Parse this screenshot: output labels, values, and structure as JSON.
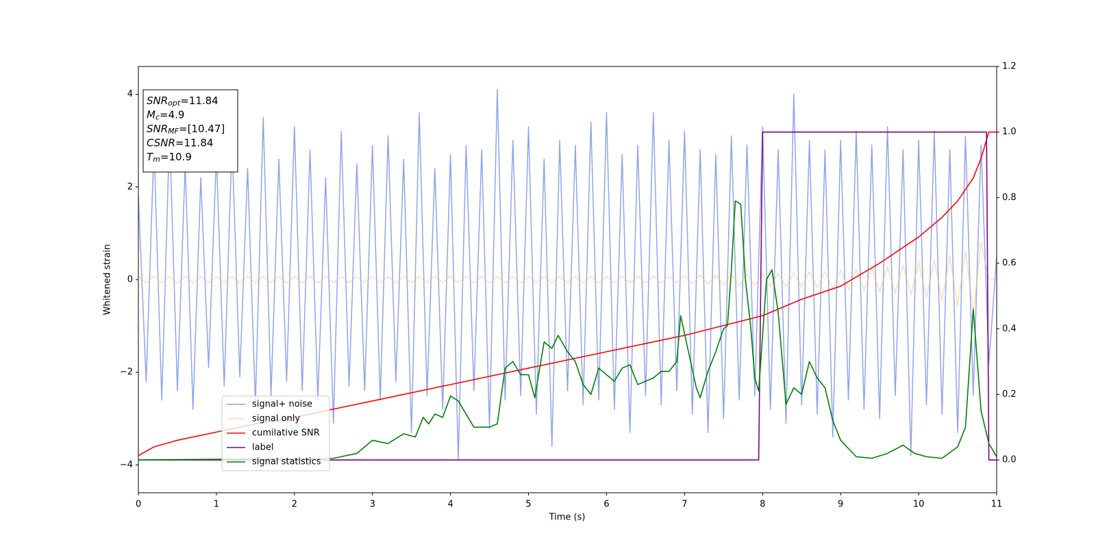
{
  "chart_data": {
    "type": "line",
    "xlabel": "Time (s)",
    "ylabel": "Whitened strain",
    "xlim": [
      0,
      11
    ],
    "xticks": [
      0,
      1,
      2,
      3,
      4,
      5,
      6,
      7,
      8,
      9,
      10,
      11
    ],
    "ylim": [
      -4.6,
      4.6
    ],
    "yticks": [
      {
        "value": -4,
        "label": "−4"
      },
      {
        "value": -2,
        "label": "−2"
      },
      0,
      2,
      4
    ],
    "y2lim": [
      -0.1,
      1.2
    ],
    "y2ticks": [
      {
        "value": 0,
        "label": "0.0"
      },
      0.2,
      0.4,
      0.6,
      0.8,
      {
        "value": 1,
        "label": "1.0"
      },
      1.2
    ],
    "annotation": [
      {
        "main": "SNR",
        "sub": "opt",
        "rest": "=11.84"
      },
      {
        "main": "M",
        "sub": "c",
        "rest": "=4.9"
      },
      {
        "main": "SNR",
        "sub": "MF",
        "rest": "=[10.47]"
      },
      {
        "main": "CSNR",
        "rest": "=11.84"
      },
      {
        "main": "T",
        "sub": "m",
        "rest": "=10.9"
      }
    ],
    "series": [
      {
        "name": "signal+ noise",
        "color": "#7b94e8",
        "x": [
          0,
          0.1,
          0.2,
          0.3,
          0.4,
          0.5,
          0.6,
          0.7,
          0.8,
          0.9,
          1,
          1.1,
          1.2,
          1.3,
          1.4,
          1.5,
          1.6,
          1.7,
          1.8,
          1.9,
          2,
          2.1,
          2.2,
          2.3,
          2.4,
          2.5,
          2.6,
          2.7,
          2.8,
          2.9,
          3,
          3.1,
          3.2,
          3.3,
          3.4,
          3.5,
          3.6,
          3.7,
          3.8,
          3.9,
          4,
          4.1,
          4.2,
          4.3,
          4.4,
          4.5,
          4.6,
          4.7,
          4.8,
          4.9,
          5,
          5.1,
          5.2,
          5.3,
          5.4,
          5.5,
          5.6,
          5.7,
          5.8,
          5.9,
          6,
          6.1,
          6.2,
          6.3,
          6.4,
          6.5,
          6.6,
          6.7,
          6.8,
          6.9,
          7,
          7.1,
          7.2,
          7.3,
          7.4,
          7.5,
          7.6,
          7.7,
          7.8,
          7.9,
          8,
          8.1,
          8.2,
          8.3,
          8.4,
          8.5,
          8.6,
          8.7,
          8.8,
          8.9,
          9,
          9.1,
          9.2,
          9.3,
          9.4,
          9.5,
          9.6,
          9.7,
          9.8,
          9.9,
          10,
          10.1,
          10.2,
          10.3,
          10.4,
          10.5,
          10.6,
          10.7,
          10.8,
          10.9,
          11
        ],
        "values": [
          1.8,
          -2.2,
          2.9,
          -2.6,
          3.2,
          -2.4,
          2.5,
          -2.8,
          2.2,
          -1.9,
          2.7,
          -2.3,
          3.0,
          -2.1,
          2.4,
          -2.7,
          3.5,
          -2.5,
          2.6,
          -2.2,
          3.3,
          -2.4,
          2.8,
          -2.6,
          2.2,
          -3.1,
          3.2,
          -2.3,
          2.5,
          -2.4,
          2.9,
          -2.6,
          3.1,
          -2.2,
          2.6,
          -3.3,
          3.6,
          -2.5,
          2.4,
          -2.8,
          2.7,
          -3.9,
          2.9,
          -2.4,
          2.8,
          -3.2,
          4.1,
          -2.6,
          3.0,
          -2.5,
          3.3,
          -2.9,
          2.6,
          -3.6,
          3.0,
          -2.4,
          2.9,
          -2.7,
          3.4,
          -2.6,
          3.6,
          -2.8,
          2.7,
          -3.3,
          2.9,
          -2.5,
          3.6,
          -2.7,
          3.0,
          -2.4,
          3.2,
          -2.9,
          2.8,
          -3.3,
          2.7,
          -3.0,
          3.1,
          -2.6,
          2.9,
          -2.5,
          3.3,
          -2.8,
          2.8,
          -3.1,
          4.0,
          -2.7,
          3.0,
          -2.9,
          2.8,
          -3.4,
          3.0,
          -2.6,
          3.2,
          -2.8,
          2.9,
          -3.0,
          3.3,
          -2.5,
          2.8,
          -3.8,
          3.0,
          -2.7,
          3.2,
          -2.9,
          2.8,
          -3.3,
          3.1,
          -2.5,
          2.9,
          -1.8,
          0.5
        ]
      },
      {
        "name": "signal only",
        "color": "#f5c46e",
        "x": [
          0,
          0.1,
          0.2,
          0.3,
          0.4,
          0.5,
          0.6,
          0.7,
          0.8,
          0.9,
          1,
          1.1,
          1.2,
          1.3,
          1.4,
          1.5,
          1.6,
          1.7,
          1.8,
          1.9,
          2,
          2.1,
          2.2,
          2.3,
          2.4,
          2.5,
          2.6,
          2.7,
          2.8,
          2.9,
          3,
          3.1,
          3.2,
          3.3,
          3.4,
          3.5,
          3.6,
          3.7,
          3.8,
          3.9,
          4,
          4.1,
          4.2,
          4.3,
          4.4,
          4.5,
          4.6,
          4.7,
          4.8,
          4.9,
          5,
          5.1,
          5.2,
          5.3,
          5.4,
          5.5,
          5.6,
          5.7,
          5.8,
          5.9,
          6,
          6.1,
          6.2,
          6.3,
          6.4,
          6.5,
          6.6,
          6.7,
          6.8,
          6.9,
          7,
          7.1,
          7.2,
          7.3,
          7.4,
          7.5,
          7.6,
          7.7,
          7.8,
          7.9,
          8,
          8.1,
          8.2,
          8.3,
          8.4,
          8.5,
          8.6,
          8.7,
          8.8,
          8.9,
          9,
          9.1,
          9.2,
          9.3,
          9.4,
          9.5,
          9.6,
          9.7,
          9.8,
          9.9,
          10,
          10.1,
          10.2,
          10.3,
          10.4,
          10.5,
          10.6,
          10.7,
          10.8,
          10.9,
          11
        ],
        "values": [
          0.07,
          -0.07,
          0.07,
          -0.07,
          0.07,
          -0.07,
          0.07,
          -0.07,
          0.07,
          -0.07,
          0.07,
          -0.07,
          0.07,
          -0.07,
          0.07,
          -0.07,
          0.07,
          -0.07,
          0.07,
          -0.07,
          0.07,
          -0.07,
          0.07,
          -0.07,
          0.07,
          -0.07,
          0.07,
          -0.07,
          0.07,
          -0.07,
          0.07,
          -0.07,
          0.07,
          -0.07,
          0.07,
          -0.07,
          0.07,
          -0.07,
          0.07,
          -0.07,
          0.07,
          -0.07,
          0.07,
          -0.07,
          0.07,
          -0.07,
          0.07,
          -0.07,
          0.07,
          -0.07,
          0.07,
          -0.07,
          0.07,
          -0.07,
          0.07,
          -0.07,
          0.07,
          -0.07,
          0.07,
          -0.07,
          0.07,
          -0.07,
          0.07,
          -0.07,
          0.07,
          -0.07,
          0.07,
          -0.07,
          0.07,
          -0.07,
          0.09,
          -0.09,
          0.1,
          -0.1,
          0.1,
          -0.11,
          0.11,
          -0.12,
          0.12,
          -0.13,
          0.13,
          -0.14,
          0.14,
          -0.15,
          0.15,
          -0.16,
          0.17,
          -0.17,
          0.18,
          -0.19,
          0.2,
          -0.21,
          0.22,
          -0.23,
          0.24,
          -0.26,
          0.27,
          -0.29,
          0.31,
          -0.33,
          0.36,
          -0.39,
          0.42,
          -0.46,
          0.5,
          -0.56,
          0.62,
          -0.7,
          0.8,
          0,
          0
        ]
      },
      {
        "name": "cumilative SNR",
        "color": "#ff0000",
        "axis": "y2",
        "x": [
          0,
          0.2,
          0.5,
          1,
          1.5,
          2,
          3,
          4,
          5,
          6,
          7,
          8,
          8.5,
          9,
          9.5,
          10,
          10.3,
          10.5,
          10.7,
          10.8,
          10.85,
          10.9,
          11
        ],
        "values": [
          0.013,
          0.04,
          0.06,
          0.085,
          0.11,
          0.13,
          0.18,
          0.23,
          0.28,
          0.33,
          0.38,
          0.44,
          0.49,
          0.53,
          0.6,
          0.68,
          0.74,
          0.79,
          0.86,
          0.92,
          0.96,
          1.0,
          1.0
        ]
      },
      {
        "name": "label",
        "color": "#800080",
        "axis": "y2",
        "x": [
          0,
          7.95,
          8.0,
          10.87,
          10.9,
          11
        ],
        "values": [
          0,
          0,
          1,
          1,
          0,
          0
        ]
      },
      {
        "name": "signal statistics",
        "color": "#008000",
        "axis": "y2",
        "x": [
          0,
          2.5,
          2.8,
          3.0,
          3.2,
          3.4,
          3.55,
          3.65,
          3.72,
          3.8,
          3.9,
          4.0,
          4.1,
          4.3,
          4.5,
          4.6,
          4.7,
          4.8,
          4.9,
          5.0,
          5.08,
          5.2,
          5.3,
          5.38,
          5.5,
          5.6,
          5.7,
          5.8,
          5.9,
          6.0,
          6.1,
          6.2,
          6.3,
          6.4,
          6.5,
          6.6,
          6.7,
          6.8,
          6.9,
          6.95,
          7.05,
          7.15,
          7.2,
          7.3,
          7.4,
          7.5,
          7.55,
          7.6,
          7.65,
          7.72,
          7.78,
          7.85,
          7.9,
          7.95,
          8.05,
          8.12,
          8.2,
          8.3,
          8.4,
          8.5,
          8.6,
          8.7,
          8.8,
          8.9,
          9.0,
          9.2,
          9.4,
          9.6,
          9.8,
          9.95,
          10.1,
          10.3,
          10.5,
          10.6,
          10.7,
          10.8,
          10.9,
          11.0
        ],
        "values": [
          0,
          0.005,
          0.02,
          0.06,
          0.05,
          0.08,
          0.07,
          0.13,
          0.11,
          0.14,
          0.13,
          0.195,
          0.18,
          0.1,
          0.1,
          0.11,
          0.28,
          0.3,
          0.26,
          0.26,
          0.19,
          0.36,
          0.34,
          0.38,
          0.33,
          0.3,
          0.23,
          0.2,
          0.28,
          0.26,
          0.24,
          0.28,
          0.29,
          0.23,
          0.24,
          0.25,
          0.27,
          0.27,
          0.3,
          0.44,
          0.33,
          0.22,
          0.19,
          0.27,
          0.33,
          0.4,
          0.41,
          0.58,
          0.79,
          0.78,
          0.55,
          0.4,
          0.25,
          0.21,
          0.55,
          0.58,
          0.45,
          0.17,
          0.22,
          0.2,
          0.3,
          0.25,
          0.22,
          0.12,
          0.06,
          0.01,
          0.005,
          0.02,
          0.045,
          0.02,
          0.01,
          0.005,
          0.04,
          0.1,
          0.46,
          0.15,
          0.05,
          0.01
        ]
      }
    ]
  }
}
